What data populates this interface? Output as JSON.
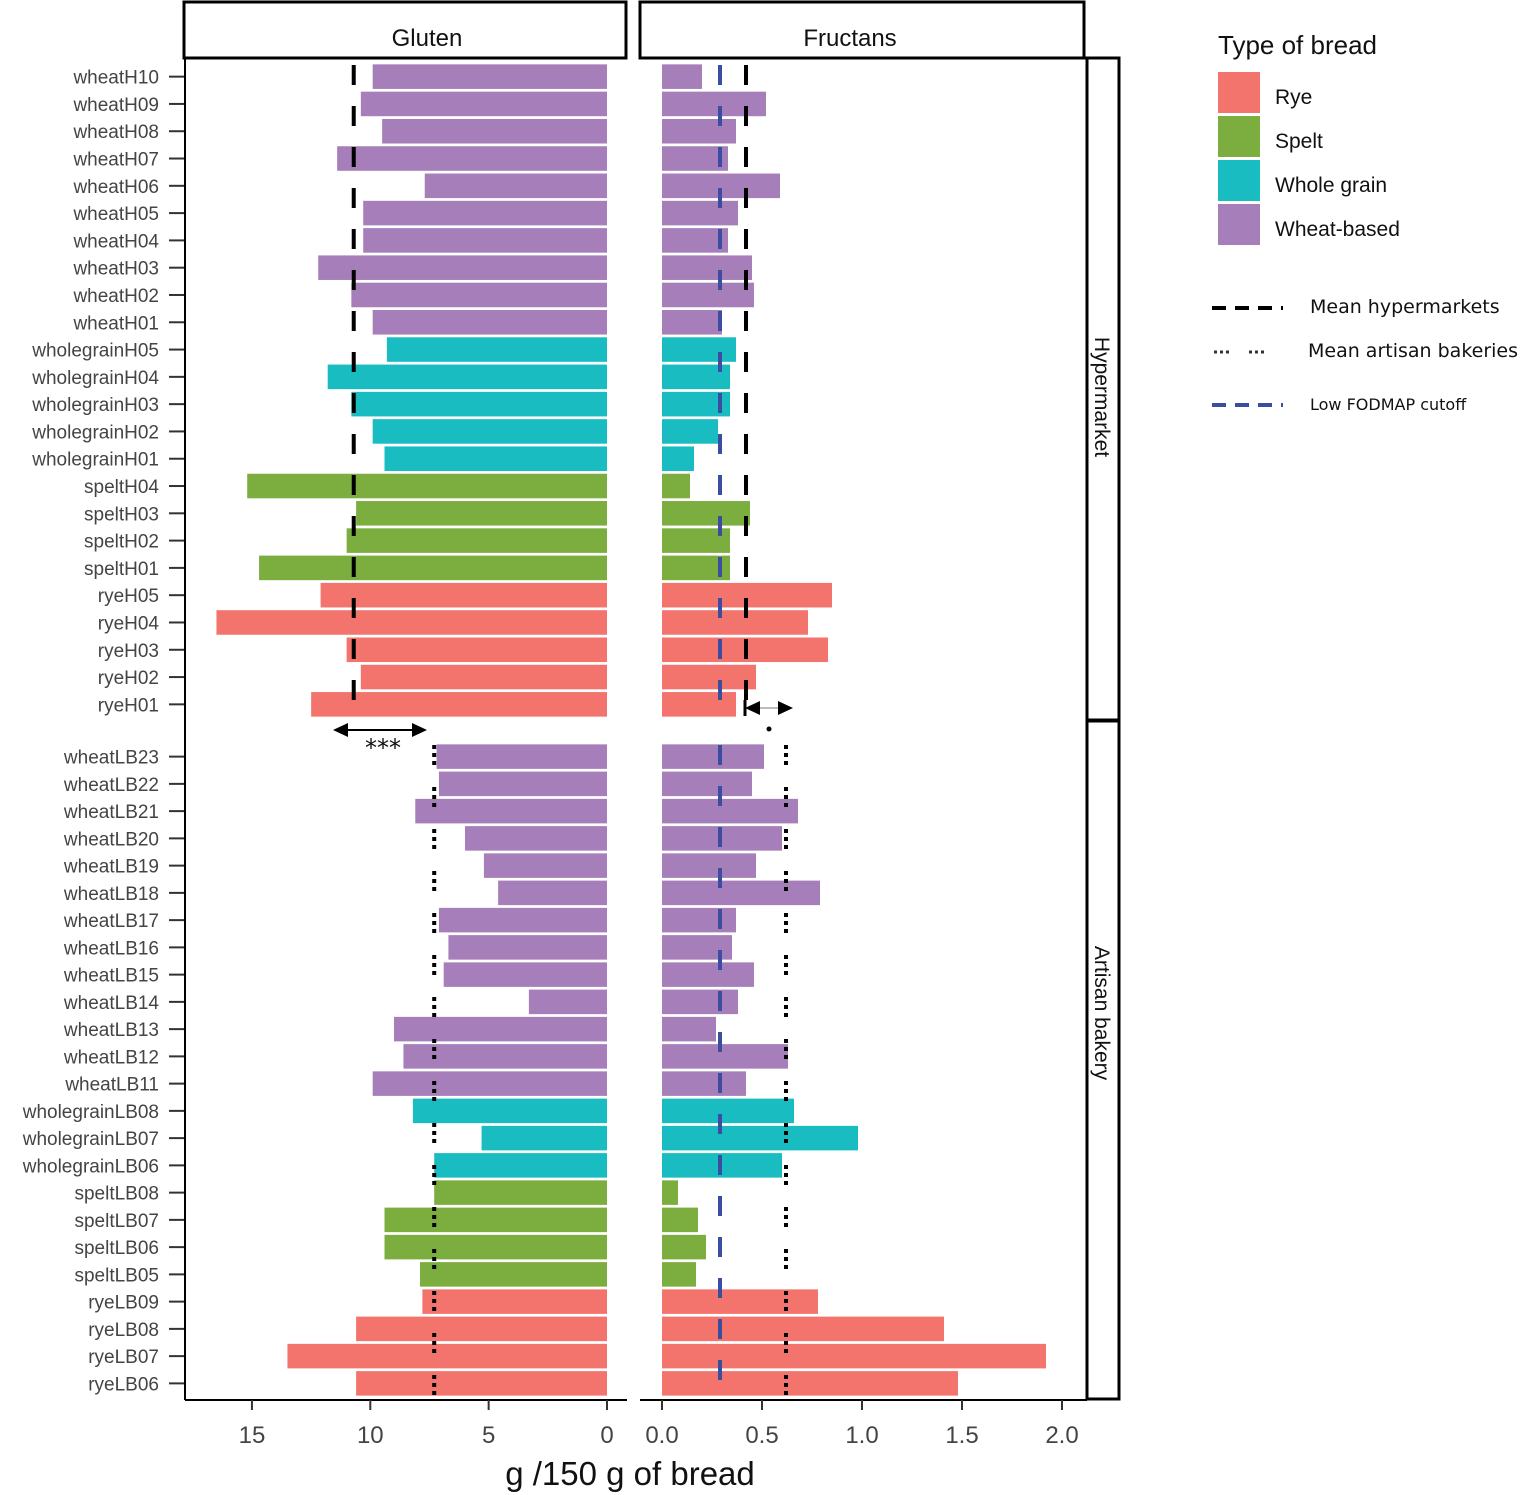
{
  "chart_data": {
    "type": "bar",
    "orientation": "horizontal",
    "xlabel": "g /150 g of bread",
    "panels": [
      {
        "name": "Gluten",
        "xlim": [
          0,
          18.5
        ],
        "reversed": true,
        "ticks": [
          0,
          5,
          10,
          15
        ],
        "tick_labels": [
          "0",
          "5",
          "10",
          "15"
        ]
      },
      {
        "name": "Fructans",
        "xlim": [
          0,
          2.1
        ],
        "reversed": false,
        "ticks": [
          0,
          0.5,
          1.0,
          1.5,
          2.0
        ],
        "tick_labels": [
          "0.0",
          "0.5",
          "1.0",
          "1.5",
          "2.0"
        ]
      }
    ],
    "facets": [
      {
        "name": "Hypermarket",
        "mean_gluten": 10.7,
        "mean_fructans": 0.42,
        "rows": [
          {
            "label": "wheatH10",
            "type": "Wheat-based",
            "gluten": 9.9,
            "fructans": 0.2
          },
          {
            "label": "wheatH09",
            "type": "Wheat-based",
            "gluten": 10.4,
            "fructans": 0.52
          },
          {
            "label": "wheatH08",
            "type": "Wheat-based",
            "gluten": 9.5,
            "fructans": 0.37
          },
          {
            "label": "wheatH07",
            "type": "Wheat-based",
            "gluten": 11.4,
            "fructans": 0.33
          },
          {
            "label": "wheatH06",
            "type": "Wheat-based",
            "gluten": 7.7,
            "fructans": 0.59
          },
          {
            "label": "wheatH05",
            "type": "Wheat-based",
            "gluten": 10.3,
            "fructans": 0.38
          },
          {
            "label": "wheatH04",
            "type": "Wheat-based",
            "gluten": 10.3,
            "fructans": 0.33
          },
          {
            "label": "wheatH03",
            "type": "Wheat-based",
            "gluten": 12.2,
            "fructans": 0.45
          },
          {
            "label": "wheatH02",
            "type": "Wheat-based",
            "gluten": 10.8,
            "fructans": 0.46
          },
          {
            "label": "wheatH01",
            "type": "Wheat-based",
            "gluten": 9.9,
            "fructans": 0.3
          },
          {
            "label": "wholegrainH05",
            "type": "Whole grain",
            "gluten": 9.3,
            "fructans": 0.37
          },
          {
            "label": "wholegrainH04",
            "type": "Whole grain",
            "gluten": 11.8,
            "fructans": 0.34
          },
          {
            "label": "wholegrainH03",
            "type": "Whole grain",
            "gluten": 10.8,
            "fructans": 0.34
          },
          {
            "label": "wholegrainH02",
            "type": "Whole grain",
            "gluten": 9.9,
            "fructans": 0.28
          },
          {
            "label": "wholegrainH01",
            "type": "Whole grain",
            "gluten": 9.4,
            "fructans": 0.16
          },
          {
            "label": "speltH04",
            "type": "Spelt",
            "gluten": 15.2,
            "fructans": 0.14
          },
          {
            "label": "speltH03",
            "type": "Spelt",
            "gluten": 10.6,
            "fructans": 0.44
          },
          {
            "label": "speltH02",
            "type": "Spelt",
            "gluten": 11.0,
            "fructans": 0.34
          },
          {
            "label": "speltH01",
            "type": "Spelt",
            "gluten": 14.7,
            "fructans": 0.34
          },
          {
            "label": "ryeH05",
            "type": "Rye",
            "gluten": 12.1,
            "fructans": 0.85
          },
          {
            "label": "ryeH04",
            "type": "Rye",
            "gluten": 16.5,
            "fructans": 0.73
          },
          {
            "label": "ryeH03",
            "type": "Rye",
            "gluten": 11.0,
            "fructans": 0.83
          },
          {
            "label": "ryeH02",
            "type": "Rye",
            "gluten": 10.4,
            "fructans": 0.47
          },
          {
            "label": "ryeH01",
            "type": "Rye",
            "gluten": 12.5,
            "fructans": 0.37
          }
        ]
      },
      {
        "name": "Artisan bakery",
        "mean_gluten": 7.3,
        "mean_fructans": 0.62,
        "rows": [
          {
            "label": "wheatLB23",
            "type": "Wheat-based",
            "gluten": 7.2,
            "fructans": 0.51
          },
          {
            "label": "wheatLB22",
            "type": "Wheat-based",
            "gluten": 7.1,
            "fructans": 0.45
          },
          {
            "label": "wheatLB21",
            "type": "Wheat-based",
            "gluten": 8.1,
            "fructans": 0.68
          },
          {
            "label": "wheatLB20",
            "type": "Wheat-based",
            "gluten": 6.0,
            "fructans": 0.6
          },
          {
            "label": "wheatLB19",
            "type": "Wheat-based",
            "gluten": 5.2,
            "fructans": 0.47
          },
          {
            "label": "wheatLB18",
            "type": "Wheat-based",
            "gluten": 4.6,
            "fructans": 0.79
          },
          {
            "label": "wheatLB17",
            "type": "Wheat-based",
            "gluten": 7.1,
            "fructans": 0.37
          },
          {
            "label": "wheatLB16",
            "type": "Wheat-based",
            "gluten": 6.7,
            "fructans": 0.35
          },
          {
            "label": "wheatLB15",
            "type": "Wheat-based",
            "gluten": 6.9,
            "fructans": 0.46
          },
          {
            "label": "wheatLB14",
            "type": "Wheat-based",
            "gluten": 3.3,
            "fructans": 0.38
          },
          {
            "label": "wheatLB13",
            "type": "Wheat-based",
            "gluten": 9.0,
            "fructans": 0.27
          },
          {
            "label": "wheatLB12",
            "type": "Wheat-based",
            "gluten": 8.6,
            "fructans": 0.63
          },
          {
            "label": "wheatLB11",
            "type": "Wheat-based",
            "gluten": 9.9,
            "fructans": 0.42
          },
          {
            "label": "wholegrainLB08",
            "type": "Whole grain",
            "gluten": 8.2,
            "fructans": 0.66
          },
          {
            "label": "wholegrainLB07",
            "type": "Whole grain",
            "gluten": 5.3,
            "fructans": 0.98
          },
          {
            "label": "wholegrainLB06",
            "type": "Whole grain",
            "gluten": 7.3,
            "fructans": 0.6
          },
          {
            "label": "speltLB08",
            "type": "Spelt",
            "gluten": 7.3,
            "fructans": 0.08
          },
          {
            "label": "speltLB07",
            "type": "Spelt",
            "gluten": 9.4,
            "fructans": 0.18
          },
          {
            "label": "speltLB06",
            "type": "Spelt",
            "gluten": 9.4,
            "fructans": 0.22
          },
          {
            "label": "speltLB05",
            "type": "Spelt",
            "gluten": 7.9,
            "fructans": 0.17
          },
          {
            "label": "ryeLB09",
            "type": "Rye",
            "gluten": 7.8,
            "fructans": 0.78
          },
          {
            "label": "ryeLB08",
            "type": "Rye",
            "gluten": 10.6,
            "fructans": 1.41
          },
          {
            "label": "ryeLB07",
            "type": "Rye",
            "gluten": 13.5,
            "fructans": 1.92
          },
          {
            "label": "ryeLB06",
            "type": "Rye",
            "gluten": 10.6,
            "fructans": 1.48
          }
        ]
      }
    ],
    "low_fodmap_cutoff_fructans": 0.29,
    "significance": [
      {
        "panel": "Gluten",
        "label": "***",
        "from_mean": "Hypermarket",
        "to_mean": "Artisan bakery"
      },
      {
        "panel": "Fructans",
        "label": ".",
        "from_mean": "Hypermarket",
        "to_mean": "Artisan bakery"
      }
    ],
    "legend": {
      "title": "Type of bread",
      "placement": "right",
      "fills": [
        {
          "label": "Rye",
          "color": "#F3746D"
        },
        {
          "label": "Spelt",
          "color": "#7CAE3F"
        },
        {
          "label": "Whole grain",
          "color": "#19BDC1"
        },
        {
          "label": "Wheat-based",
          "color": "#A67FBA"
        }
      ],
      "lines": [
        {
          "label": "Mean hypermarkets",
          "style": "dashed",
          "color": "#000000"
        },
        {
          "label": "Mean artisan bakeries",
          "style": "dotted",
          "color": "#000000"
        },
        {
          "label": "Low FODMAP cutoff",
          "style": "dashed",
          "color": "#3A4DA0"
        }
      ]
    }
  }
}
